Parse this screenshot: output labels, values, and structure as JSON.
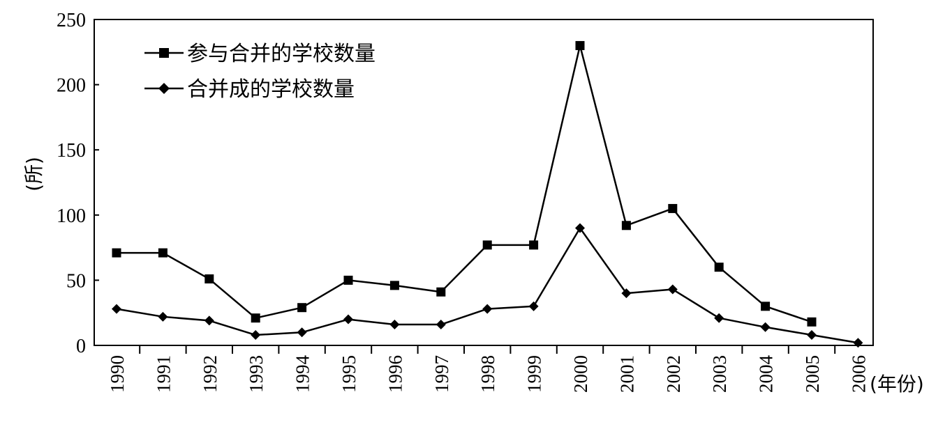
{
  "chart_data": {
    "type": "line",
    "title": "",
    "xlabel": "(年份)",
    "ylabel": "(所)",
    "ylim": [
      0,
      250
    ],
    "yticks": [
      0,
      50,
      100,
      150,
      200,
      250
    ],
    "categories": [
      "1990",
      "1991",
      "1992",
      "1993",
      "1994",
      "1995",
      "1996",
      "1997",
      "1998",
      "1999",
      "2000",
      "2001",
      "2002",
      "2003",
      "2004",
      "2005",
      "2006"
    ],
    "grid": false,
    "legend_position": "top-left",
    "series": [
      {
        "name": "参与合并的学校数量",
        "marker": "square",
        "color": "#000000",
        "values": [
          71,
          71,
          51,
          21,
          29,
          50,
          46,
          41,
          77,
          77,
          230,
          92,
          105,
          60,
          30,
          18,
          null
        ]
      },
      {
        "name": "合并成的学校数量",
        "marker": "diamond",
        "color": "#000000",
        "values": [
          28,
          22,
          19,
          8,
          10,
          20,
          16,
          16,
          28,
          30,
          90,
          40,
          43,
          21,
          14,
          8,
          2
        ]
      }
    ]
  }
}
